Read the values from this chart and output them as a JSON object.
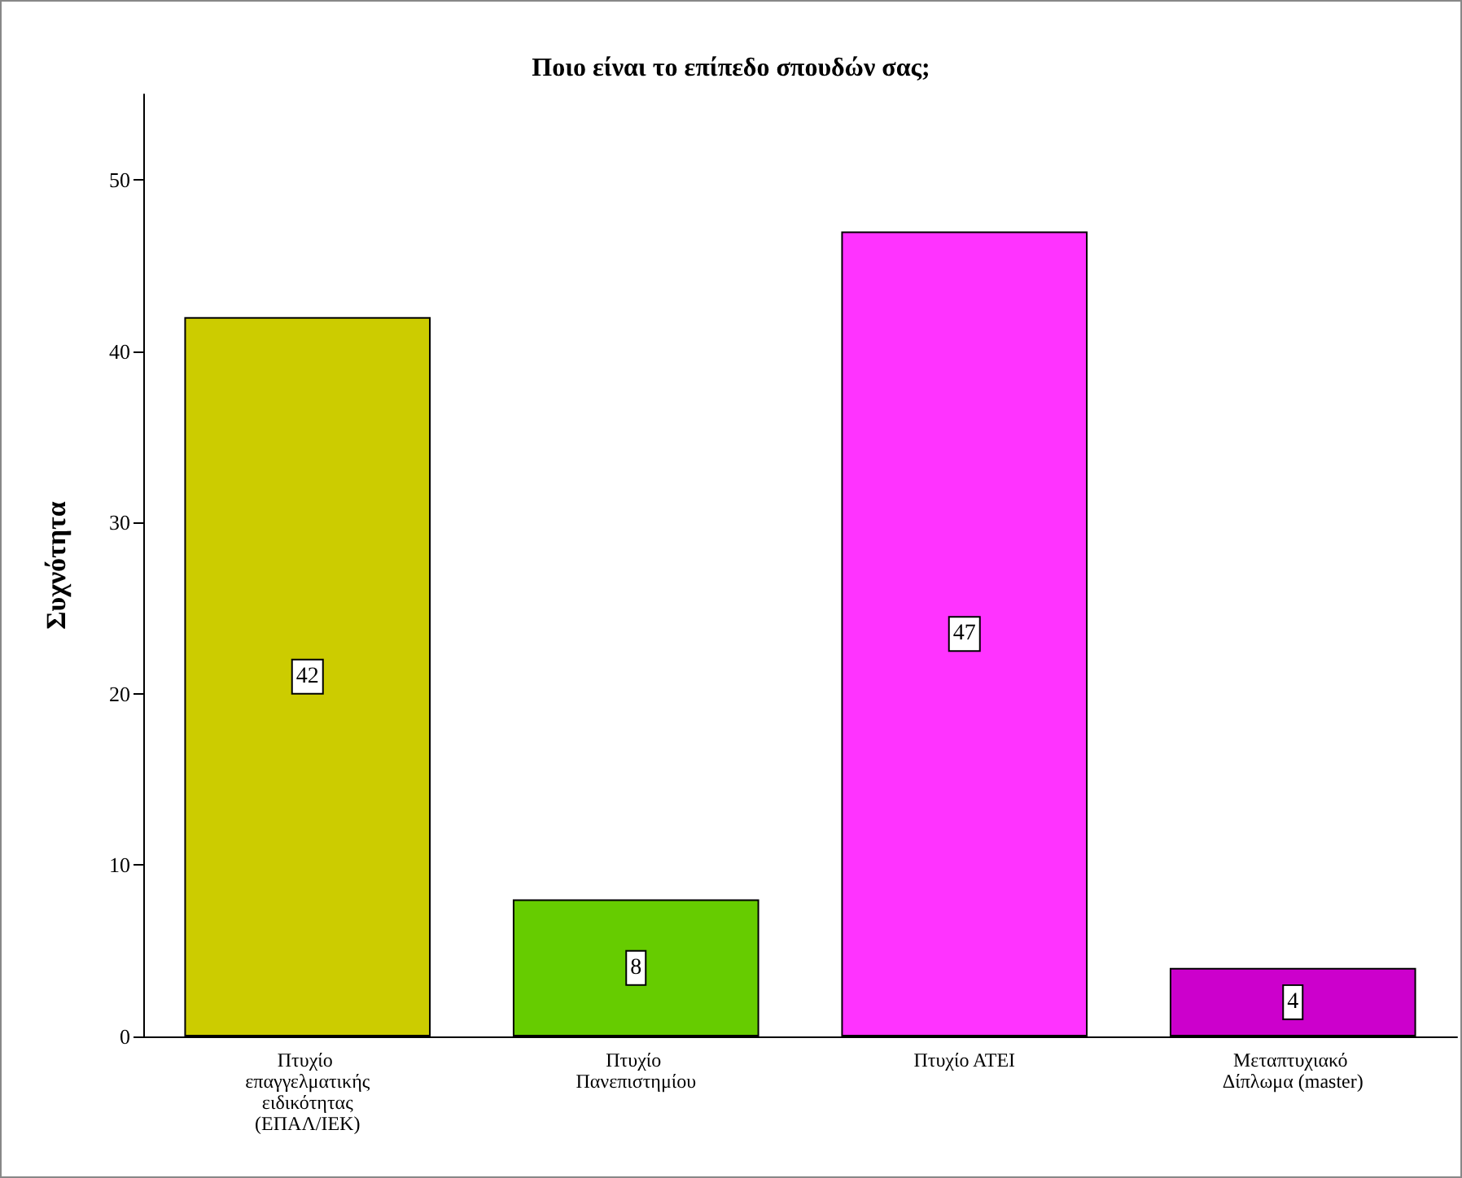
{
  "chart_data": {
    "type": "bar",
    "title": "Ποιο είναι το επίπεδο σπουδών σας;",
    "ylabel": "Συχνότητα",
    "categories": [
      "Πτυχίο επαγγελματικής ειδικότητας (ΕΠΑΛ/ΙΕΚ)",
      "Πτυχίο Πανεπιστημίου",
      "Πτυχίο ΑΤΕΙ",
      "Μεταπτυχιακό Δίπλωμα (master)"
    ],
    "values": [
      42,
      8,
      47,
      4
    ],
    "colors": [
      "#cccc00",
      "#66cc00",
      "#ff33ff",
      "#cc00cc"
    ],
    "ylim": [
      0,
      55
    ],
    "yticks": [
      0,
      10,
      20,
      30,
      40,
      50
    ],
    "grid": false,
    "data_labels": true
  }
}
